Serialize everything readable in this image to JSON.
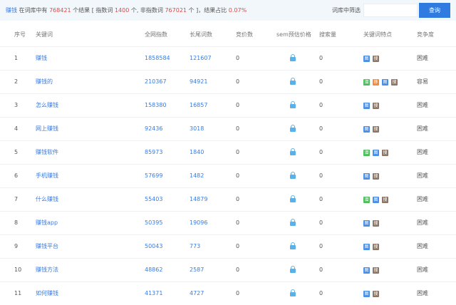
{
  "summary": {
    "keyword": "赚钱",
    "t1": " 在词库中有 ",
    "total": "768421",
    "t2": " 个结果 [ 指数词 ",
    "index_count": "1400",
    "t3": " 个, 非指数词 ",
    "non_index_count": "767021",
    "t4": " 个 ]，结果占比 ",
    "ratio": "0.07%"
  },
  "filter": {
    "label": "词库中筛选",
    "placeholder": "",
    "button": "查询"
  },
  "columns": [
    "序号",
    "关键词",
    "全网指数",
    "长尾词数",
    "竞价数",
    "sem预估价格",
    "搜索量",
    "关键词特点",
    "竞争度"
  ],
  "tag_colors": {
    "潜": "#4cbf5a",
    "移": "#f08a3c",
    "图": "#4a8fe8",
    "搜": "#8a7566"
  },
  "rows": [
    {
      "no": "1",
      "kw": "赚钱",
      "idx": "1858584",
      "tail": "121607",
      "bid": "0",
      "vol": "0",
      "tags": [
        "图",
        "搜"
      ],
      "comp": "困难"
    },
    {
      "no": "2",
      "kw": "赚钱的",
      "idx": "210367",
      "tail": "94921",
      "bid": "0",
      "vol": "0",
      "tags": [
        "潜",
        "移",
        "图",
        "搜"
      ],
      "comp": "容易"
    },
    {
      "no": "3",
      "kw": "怎么赚钱",
      "idx": "158380",
      "tail": "16857",
      "bid": "0",
      "vol": "0",
      "tags": [
        "图",
        "搜"
      ],
      "comp": "困难"
    },
    {
      "no": "4",
      "kw": "网上赚钱",
      "idx": "92436",
      "tail": "3018",
      "bid": "0",
      "vol": "0",
      "tags": [
        "图",
        "搜"
      ],
      "comp": "困难"
    },
    {
      "no": "5",
      "kw": "赚钱软件",
      "idx": "85973",
      "tail": "1840",
      "bid": "0",
      "vol": "0",
      "tags": [
        "潜",
        "图",
        "搜"
      ],
      "comp": "困难"
    },
    {
      "no": "6",
      "kw": "手机赚钱",
      "idx": "57699",
      "tail": "1482",
      "bid": "0",
      "vol": "0",
      "tags": [
        "图",
        "搜"
      ],
      "comp": "困难"
    },
    {
      "no": "7",
      "kw": "什么赚钱",
      "idx": "55403",
      "tail": "14879",
      "bid": "0",
      "vol": "0",
      "tags": [
        "潜",
        "图",
        "搜"
      ],
      "comp": "困难"
    },
    {
      "no": "8",
      "kw": "赚钱app",
      "idx": "50395",
      "tail": "19096",
      "bid": "0",
      "vol": "0",
      "tags": [
        "图",
        "搜"
      ],
      "comp": "困难"
    },
    {
      "no": "9",
      "kw": "赚钱平台",
      "idx": "50043",
      "tail": "773",
      "bid": "0",
      "vol": "0",
      "tags": [
        "图",
        "搜"
      ],
      "comp": "困难"
    },
    {
      "no": "10",
      "kw": "赚钱方法",
      "idx": "48862",
      "tail": "2587",
      "bid": "0",
      "vol": "0",
      "tags": [
        "图",
        "搜"
      ],
      "comp": "困难"
    },
    {
      "no": "11",
      "kw": "如何赚钱",
      "idx": "41371",
      "tail": "4727",
      "bid": "0",
      "vol": "0",
      "tags": [
        "图",
        "搜"
      ],
      "comp": "困难"
    }
  ]
}
